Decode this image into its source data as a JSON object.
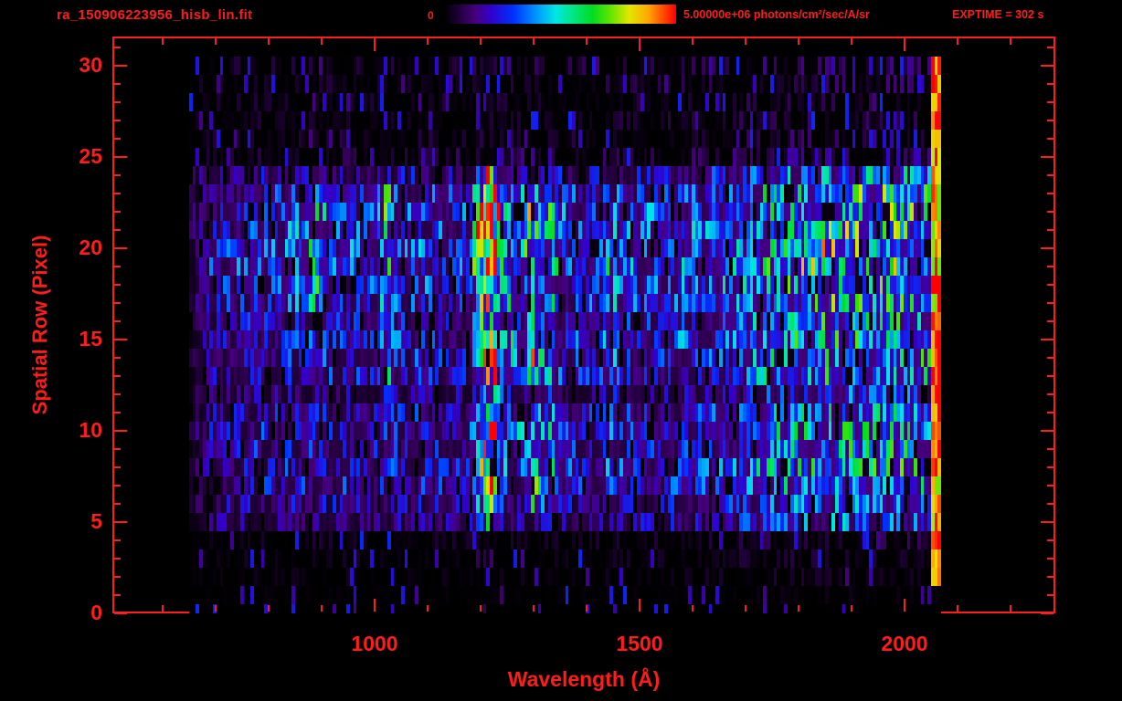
{
  "window": {
    "background": "#000000"
  },
  "colors": {
    "accent_red": "#ff1c1c",
    "plot_background": "#000000"
  },
  "header": {
    "file_title": "ra_150906223956_hisb_lin.fit",
    "colorbar_min_label": "0",
    "colorbar_max_label": "5.00000e+06 photons/cm²/sec/A/sr",
    "exptime_label": "EXPTIME = 302 s"
  },
  "chart_data": {
    "type": "heatmap",
    "title": "ra_150906223956_hisb_lin.fit",
    "xlabel": "Wavelength (Å)",
    "ylabel": "Spatial Row (Pixel)",
    "x_axis": {
      "min": 505,
      "max": 2285,
      "ticks": [
        1000,
        1500,
        2000
      ],
      "minor_step": 100
    },
    "y_axis": {
      "min": 0,
      "max": 31.6,
      "ticks": [
        0,
        5,
        10,
        15,
        20,
        25,
        30
      ],
      "minor_step": 1
    },
    "colorbar": {
      "min": 0,
      "max": 5000000,
      "max_label": "5.00000e+06",
      "units": "photons/cm²/sec/A/sr"
    },
    "exptime_s": 302,
    "data_extent": {
      "wavelength_min": 650,
      "wavelength_max": 2070,
      "row_min": 0,
      "row_max": 30
    },
    "colormap_stops": [
      [
        0.0,
        "#000000"
      ],
      [
        0.06,
        "#200038"
      ],
      [
        0.13,
        "#46007a"
      ],
      [
        0.2,
        "#3300cc"
      ],
      [
        0.3,
        "#0033ff"
      ],
      [
        0.4,
        "#0099ff"
      ],
      [
        0.48,
        "#00e6e6"
      ],
      [
        0.56,
        "#00e680"
      ],
      [
        0.64,
        "#00dd22"
      ],
      [
        0.72,
        "#66e600"
      ],
      [
        0.8,
        "#e6e600"
      ],
      [
        0.88,
        "#ffaa00"
      ],
      [
        0.94,
        "#ff5500"
      ],
      [
        1.0,
        "#ff0000"
      ]
    ],
    "generation": {
      "seed": 1509062,
      "nx": 220,
      "row_factors": [
        0.0,
        0.02,
        0.05,
        0.06,
        0.08,
        0.35,
        0.4,
        0.5,
        0.52,
        0.48,
        0.5,
        0.46,
        0.32,
        0.48,
        0.52,
        0.55,
        0.5,
        0.55,
        0.6,
        0.65,
        0.65,
        0.6,
        0.6,
        0.55,
        0.42,
        0.15,
        0.11,
        0.1,
        0.1,
        0.11,
        0.13
      ],
      "continuum": [
        [
          650,
          0.1
        ],
        [
          690,
          0.33
        ],
        [
          760,
          0.4
        ],
        [
          900,
          0.44
        ],
        [
          1000,
          0.4
        ],
        [
          1100,
          0.42
        ],
        [
          1180,
          0.4
        ],
        [
          1250,
          0.42
        ],
        [
          1400,
          0.44
        ],
        [
          1550,
          0.46
        ],
        [
          1650,
          0.5
        ],
        [
          1750,
          0.7
        ],
        [
          1850,
          0.8
        ],
        [
          1980,
          0.82
        ],
        [
          2045,
          0.78
        ],
        [
          2070,
          0.6
        ]
      ],
      "lines": [
        {
          "name": "Lyman-alpha",
          "center": 1216,
          "width": 14,
          "amp": 1.3,
          "rows": [
            5,
            25
          ]
        },
        {
          "name": "OI-1304",
          "center": 1300,
          "width": 12,
          "amp": 0.55,
          "rows": [
            6,
            23
          ]
        },
        {
          "name": "Lyman-beta",
          "center": 1025,
          "width": 9,
          "amp": 0.35,
          "rows": [
            11,
            23
          ]
        },
        {
          "name": "CII-1335",
          "center": 1335,
          "width": 8,
          "amp": 0.25,
          "rows": [
            7,
            22
          ]
        },
        {
          "name": "broad-870",
          "center": 880,
          "width": 25,
          "amp": 0.25,
          "rows": [
            17,
            23
          ]
        },
        {
          "name": "faint-1450",
          "center": 1450,
          "width": 10,
          "amp": 0.15,
          "rows": [
            8,
            22
          ]
        }
      ],
      "lyman_hot_rows": [
        7,
        8,
        9,
        10,
        11,
        19,
        20,
        21,
        22
      ],
      "bridge": {
        "prob": 0.5,
        "wavelength_min": 1222,
        "wavelength_max": 1312,
        "amp": 0.3,
        "row_min": 7,
        "row_max": 22
      },
      "edge": {
        "wavelength_min": 2050,
        "wavelength_max": 2068,
        "row_min": 2,
        "value_min": 0.72,
        "value_max": 1.05
      },
      "noise": {
        "mult_min": 0.3,
        "mult_amp": 1.5,
        "dropout_main": 0.1,
        "dropout_faint": 0.55,
        "faint_speck_prob": 0.07,
        "faint_threshold": 0.2
      }
    }
  }
}
